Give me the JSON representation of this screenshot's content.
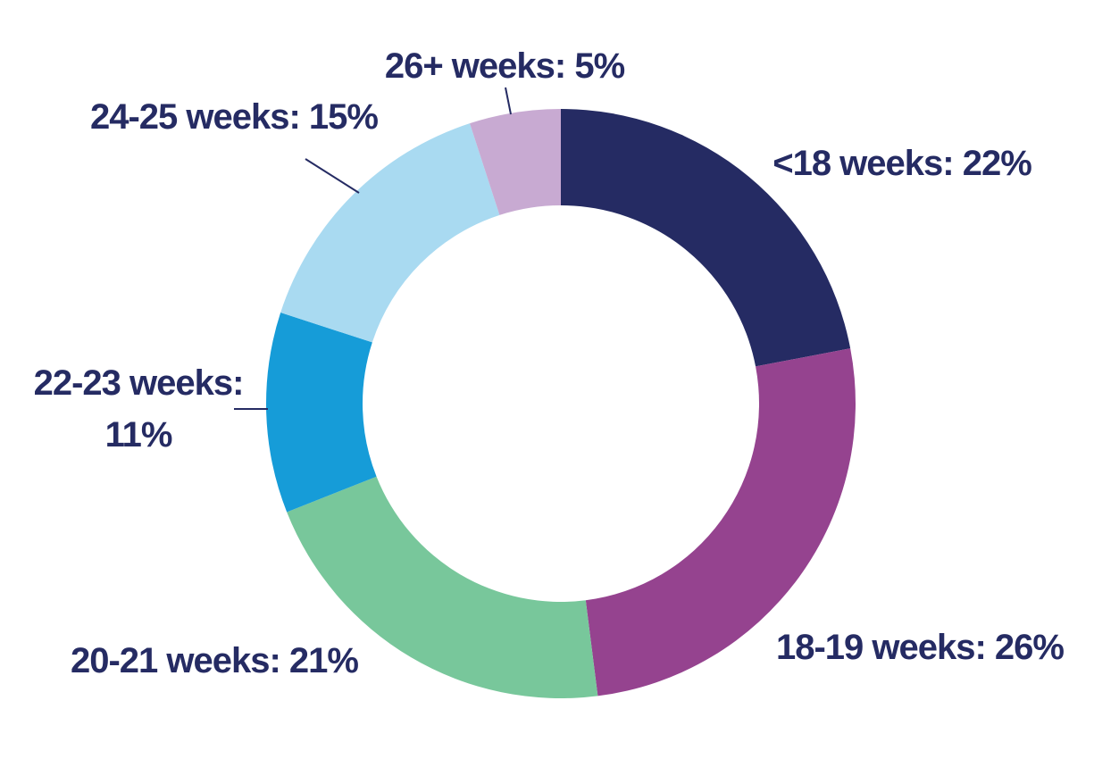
{
  "chart_data": {
    "type": "pie",
    "variant": "donut",
    "title": "",
    "slices": [
      {
        "label": "<18 weeks",
        "value": 22,
        "display": "<18 weeks: 22%",
        "color": "#252b63"
      },
      {
        "label": "18-19 weeks",
        "value": 26,
        "display": "18-19 weeks: 26%",
        "color": "#95438f"
      },
      {
        "label": "20-21 weeks",
        "value": 21,
        "display": "20-21 weeks: 21%",
        "color": "#78c79b"
      },
      {
        "label": "22-23 weeks",
        "value": 11,
        "display": "22-23 weeks: 11%",
        "display_lines": [
          "22-23 weeks:",
          "11%"
        ],
        "color": "#169cd8"
      },
      {
        "label": "24-25 weeks",
        "value": 15,
        "display": "24-25 weeks: 15%",
        "color": "#a9daf1"
      },
      {
        "label": "26+ weeks",
        "value": 5,
        "display": "26+ weeks: 5%",
        "color": "#c8aad2"
      }
    ],
    "start_angle": "12 o'clock",
    "direction": "clockwise",
    "legend": "none",
    "label_color": "#252b63"
  }
}
